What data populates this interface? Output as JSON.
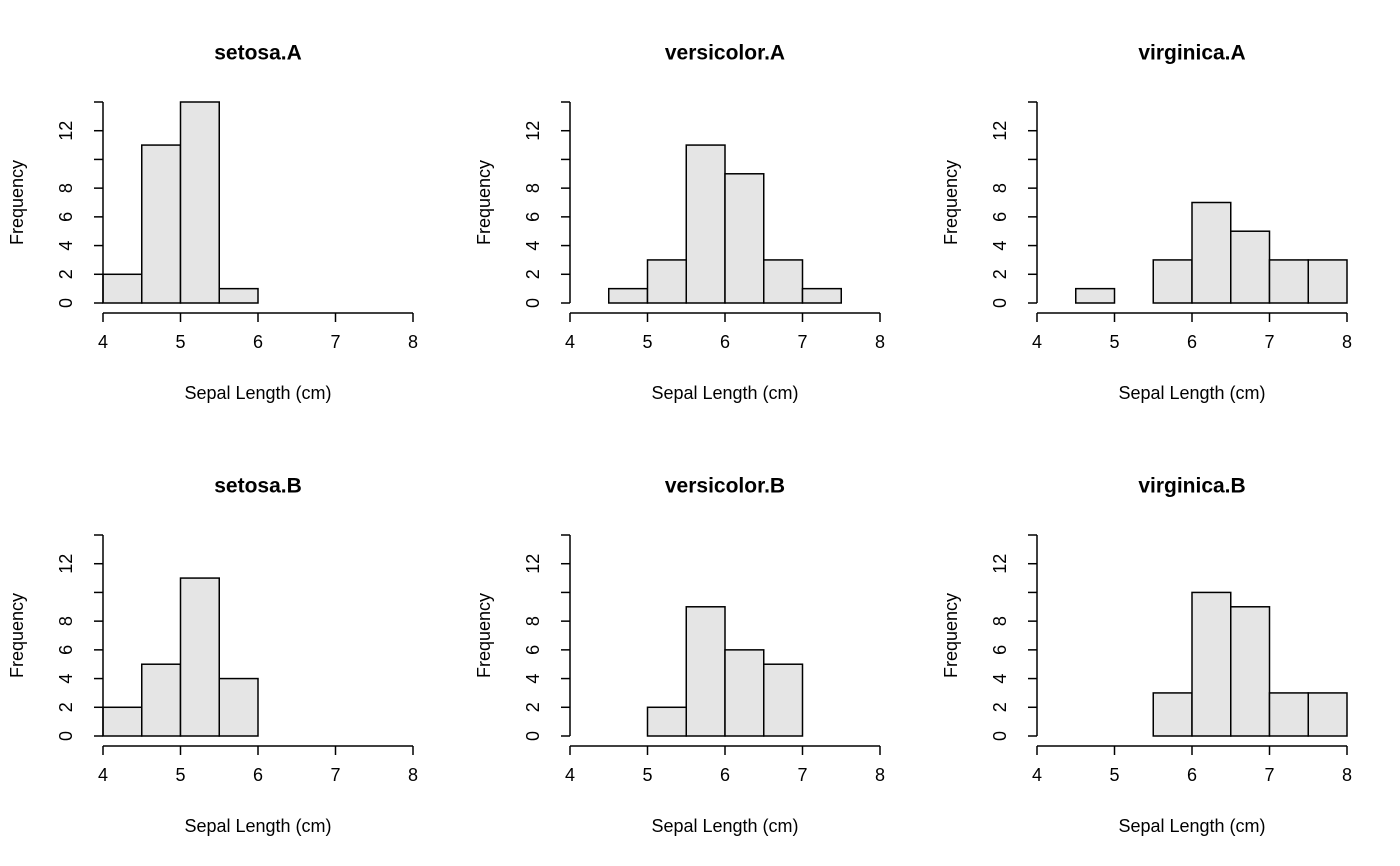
{
  "chart_data": [
    {
      "type": "histogram",
      "title": "setosa.A",
      "xlabel": "Sepal Length (cm)",
      "ylabel": "Frequency",
      "bins": [
        4,
        4.5,
        5,
        5.5,
        6,
        6.5,
        7,
        7.5,
        8
      ],
      "values": [
        2,
        11,
        14,
        1,
        0,
        0,
        0,
        0
      ],
      "color": "#e5e5e5",
      "xlim": [
        4,
        8
      ],
      "ylim": [
        0,
        14
      ],
      "xticks": [
        4,
        5,
        6,
        7,
        8
      ],
      "yticks": [
        0,
        2,
        4,
        6,
        8,
        {
          "value": 10,
          "label": null
        },
        12,
        {
          "value": 14,
          "label": null
        }
      ]
    },
    {
      "type": "histogram",
      "title": "versicolor.A",
      "xlabel": "Sepal Length (cm)",
      "ylabel": "Frequency",
      "bins": [
        4,
        4.5,
        5,
        5.5,
        6,
        6.5,
        7,
        7.5,
        8
      ],
      "values": [
        0,
        1,
        3,
        11,
        9,
        3,
        1,
        0
      ],
      "color": "#e5e5e5",
      "xlim": [
        4,
        8
      ],
      "ylim": [
        0,
        14
      ],
      "xticks": [
        4,
        5,
        6,
        7,
        8
      ],
      "yticks": [
        0,
        2,
        4,
        6,
        8,
        {
          "value": 10,
          "label": null
        },
        12,
        {
          "value": 14,
          "label": null
        }
      ]
    },
    {
      "type": "histogram",
      "title": "virginica.A",
      "xlabel": "Sepal Length (cm)",
      "ylabel": "Frequency",
      "bins": [
        4,
        4.5,
        5,
        5.5,
        6,
        6.5,
        7,
        7.5,
        8
      ],
      "values": [
        0,
        1,
        0,
        3,
        7,
        5,
        3,
        3
      ],
      "color": "#e5e5e5",
      "xlim": [
        4,
        8
      ],
      "ylim": [
        0,
        14
      ],
      "xticks": [
        4,
        5,
        6,
        7,
        8
      ],
      "yticks": [
        0,
        2,
        4,
        6,
        8,
        {
          "value": 10,
          "label": null
        },
        12,
        {
          "value": 14,
          "label": null
        }
      ]
    },
    {
      "type": "histogram",
      "title": "setosa.B",
      "xlabel": "Sepal Length (cm)",
      "ylabel": "Frequency",
      "bins": [
        4,
        4.5,
        5,
        5.5,
        6,
        6.5,
        7,
        7.5,
        8
      ],
      "values": [
        2,
        5,
        11,
        4,
        0,
        0,
        0,
        0
      ],
      "color": "#e5e5e5",
      "xlim": [
        4,
        8
      ],
      "ylim": [
        0,
        14
      ],
      "xticks": [
        4,
        5,
        6,
        7,
        8
      ],
      "yticks": [
        0,
        2,
        4,
        6,
        8,
        {
          "value": 10,
          "label": null
        },
        12,
        {
          "value": 14,
          "label": null
        }
      ]
    },
    {
      "type": "histogram",
      "title": "versicolor.B",
      "xlabel": "Sepal Length (cm)",
      "ylabel": "Frequency",
      "bins": [
        4,
        4.5,
        5,
        5.5,
        6,
        6.5,
        7,
        7.5,
        8
      ],
      "values": [
        0,
        0,
        2,
        9,
        6,
        5,
        0,
        0
      ],
      "color": "#e5e5e5",
      "xlim": [
        4,
        8
      ],
      "ylim": [
        0,
        14
      ],
      "xticks": [
        4,
        5,
        6,
        7,
        8
      ],
      "yticks": [
        0,
        2,
        4,
        6,
        8,
        {
          "value": 10,
          "label": null
        },
        12,
        {
          "value": 14,
          "label": null
        }
      ]
    },
    {
      "type": "histogram",
      "title": "virginica.B",
      "xlabel": "Sepal Length (cm)",
      "ylabel": "Frequency",
      "bins": [
        4,
        4.5,
        5,
        5.5,
        6,
        6.5,
        7,
        7.5,
        8
      ],
      "values": [
        0,
        0,
        0,
        3,
        10,
        9,
        3,
        3
      ],
      "color": "#e5e5e5",
      "xlim": [
        4,
        8
      ],
      "ylim": [
        0,
        14
      ],
      "xticks": [
        4,
        5,
        6,
        7,
        8
      ],
      "yticks": [
        0,
        2,
        4,
        6,
        8,
        {
          "value": 10,
          "label": null
        },
        12,
        {
          "value": 14,
          "label": null
        }
      ]
    }
  ]
}
